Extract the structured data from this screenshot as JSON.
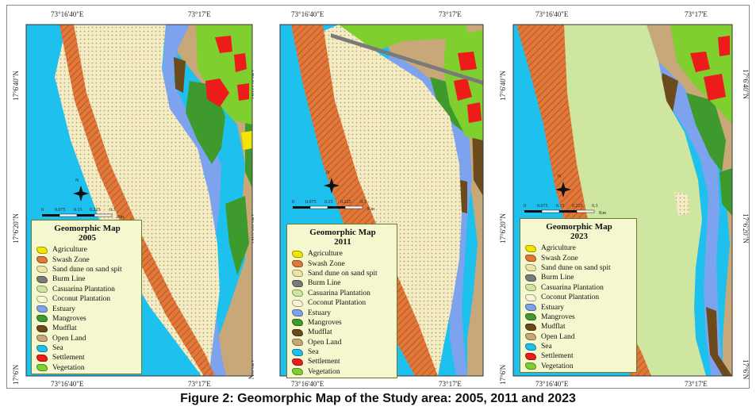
{
  "caption": "Figure 2: Geomorphic Map of the Study area: 2005, 2011 and 2023",
  "legend_title": "Geomorphic Map",
  "panels": [
    {
      "year": "2005"
    },
    {
      "year": "2011"
    },
    {
      "year": "2023"
    }
  ],
  "coords": {
    "top_left": "73°16'40\"E",
    "top_right": "73°17'E",
    "bottom_left": "73°16'40\"E",
    "bottom_right": "73°17'E",
    "lat_top": "17°6'40\"N",
    "lat_mid": "17°6'20\"N",
    "lat_bottom": "17°6'N"
  },
  "scale": {
    "ticks": [
      "0",
      "0.075",
      "0.15",
      "0.225",
      "0.3"
    ],
    "unit": "Km",
    "north": "N"
  },
  "legend_items": [
    {
      "label": "Agriculture",
      "color": "#f2e600"
    },
    {
      "label": "Swash Zone",
      "color": "#e0783a"
    },
    {
      "label": "Sand dune on sand spit",
      "color": "#eee4a8"
    },
    {
      "label": "Burm Line",
      "color": "#7a7a7a"
    },
    {
      "label": "Casuarina Plantation",
      "color": "#cfe6a0"
    },
    {
      "label": "Coconut Plantation",
      "color": "#fbf3d6"
    },
    {
      "label": "Estuary",
      "color": "#7ea3ee"
    },
    {
      "label": "Mangroves",
      "color": "#3f9a2e"
    },
    {
      "label": "Mudflat",
      "color": "#6b4a1c"
    },
    {
      "label": "Open Land",
      "color": "#c8a778"
    },
    {
      "label": "Sea",
      "color": "#1ec0ee"
    },
    {
      "label": "Settlement",
      "color": "#ee1b1b"
    },
    {
      "label": "Vegetation",
      "color": "#7fcf2f"
    }
  ],
  "colors": {
    "sea": "#1ec0ee",
    "estuary": "#7ea3ee",
    "swash": "#e0783a",
    "sand": "#f3ecc4",
    "openland": "#c8a778",
    "mangroves": "#3f9a2e",
    "mudflat": "#6b4a1c",
    "settlement": "#ee1b1b",
    "vegetation": "#7fcf2f",
    "agriculture": "#f2e600",
    "casuarina": "#cfe6a0"
  }
}
